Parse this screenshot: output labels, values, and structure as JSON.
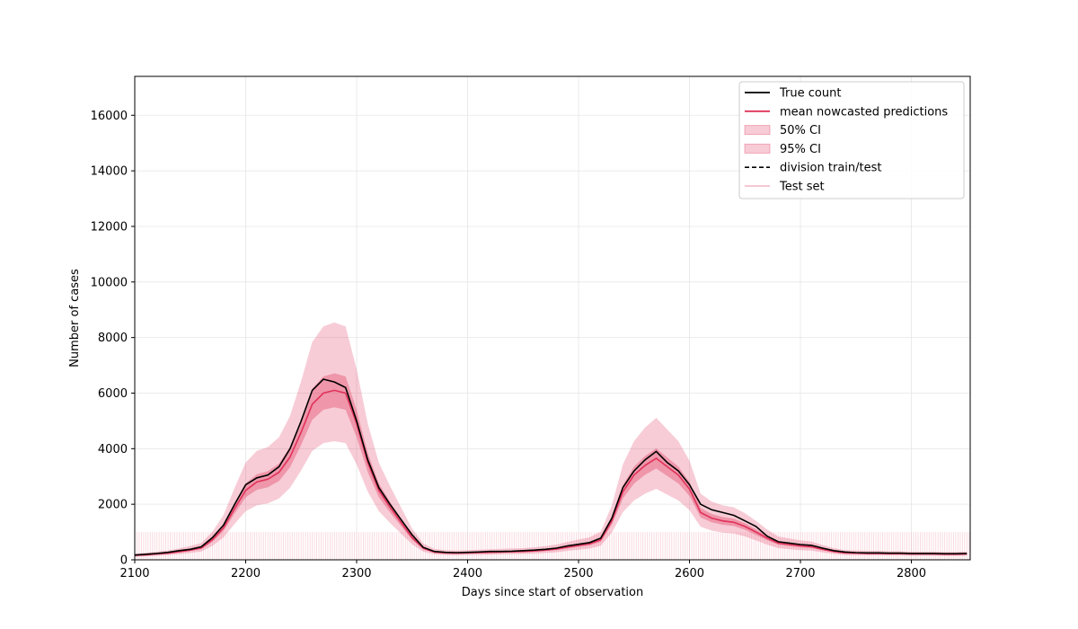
{
  "chart_data": {
    "type": "line",
    "title": "",
    "xlabel": "Days since start of observation",
    "ylabel": "Number of cases",
    "xlim": [
      2100,
      2853
    ],
    "ylim": [
      0,
      17400
    ],
    "xticks": [
      2100,
      2200,
      2300,
      2400,
      2500,
      2600,
      2700,
      2800
    ],
    "yticks": [
      0,
      2000,
      4000,
      6000,
      8000,
      10000,
      12000,
      14000,
      16000
    ],
    "grid": true,
    "legend_position": "top-right",
    "test_set": {
      "name": "Test set",
      "x_start": 2100,
      "x_end": 2853,
      "band_top": 1000,
      "color": "#f4b6c2"
    },
    "colors": {
      "true_count": "#000000",
      "mean": "#e0325a",
      "ci50": "#e0325a",
      "ci95": "#e0325a"
    },
    "legend": [
      {
        "key": "true",
        "label": "True count"
      },
      {
        "key": "mean",
        "label": "mean nowcasted predictions"
      },
      {
        "key": "ci50",
        "label": "50% CI"
      },
      {
        "key": "ci95",
        "label": "95% CI"
      },
      {
        "key": "division",
        "label": "division train/test"
      },
      {
        "key": "test",
        "label": "Test set"
      }
    ],
    "x": [
      2100,
      2110,
      2120,
      2130,
      2140,
      2150,
      2160,
      2170,
      2180,
      2190,
      2200,
      2210,
      2220,
      2230,
      2240,
      2250,
      2260,
      2270,
      2280,
      2290,
      2300,
      2310,
      2320,
      2330,
      2340,
      2350,
      2360,
      2370,
      2380,
      2390,
      2400,
      2410,
      2420,
      2430,
      2440,
      2450,
      2460,
      2470,
      2480,
      2490,
      2500,
      2510,
      2520,
      2530,
      2540,
      2550,
      2560,
      2570,
      2580,
      2590,
      2600,
      2610,
      2620,
      2630,
      2640,
      2650,
      2660,
      2670,
      2680,
      2690,
      2700,
      2710,
      2720,
      2730,
      2740,
      2750,
      2760,
      2770,
      2780,
      2790,
      2800,
      2810,
      2820,
      2830,
      2840,
      2850
    ],
    "series": [
      {
        "name": "True count",
        "values": [
          170,
          200,
          230,
          270,
          330,
          380,
          470,
          800,
          1250,
          2000,
          2700,
          2950,
          3050,
          3350,
          4000,
          5000,
          6100,
          6500,
          6400,
          6200,
          5000,
          3600,
          2600,
          2000,
          1450,
          900,
          450,
          300,
          270,
          260,
          270,
          280,
          300,
          300,
          310,
          330,
          350,
          380,
          420,
          500,
          560,
          620,
          780,
          1500,
          2600,
          3200,
          3600,
          3900,
          3500,
          3200,
          2700,
          2000,
          1800,
          1700,
          1600,
          1400,
          1200,
          850,
          650,
          600,
          550,
          520,
          420,
          330,
          280,
          260,
          250,
          250,
          240,
          240,
          230,
          230,
          230,
          220,
          220,
          230
        ]
      },
      {
        "name": "mean nowcasted predictions",
        "values": [
          160,
          180,
          210,
          240,
          290,
          350,
          430,
          720,
          1150,
          1850,
          2500,
          2800,
          2900,
          3150,
          3700,
          4600,
          5600,
          6000,
          6100,
          6000,
          4900,
          3500,
          2500,
          1900,
          1350,
          800,
          420,
          280,
          250,
          240,
          250,
          260,
          270,
          280,
          290,
          300,
          320,
          350,
          390,
          460,
          520,
          580,
          720,
          1400,
          2450,
          3050,
          3400,
          3650,
          3350,
          3050,
          2550,
          1700,
          1500,
          1400,
          1350,
          1200,
          1000,
          780,
          600,
          550,
          500,
          470,
          380,
          300,
          250,
          240,
          230,
          230,
          220,
          220,
          210,
          210,
          210,
          200,
          200,
          210
        ]
      },
      {
        "name": "50% CI lower",
        "values": [
          140,
          160,
          190,
          215,
          260,
          315,
          385,
          650,
          1035,
          1665,
          2250,
          2520,
          2610,
          2835,
          3330,
          4140,
          5040,
          5400,
          5490,
          5400,
          4410,
          3150,
          2250,
          1710,
          1215,
          720,
          378,
          252,
          225,
          216,
          225,
          234,
          243,
          252,
          261,
          270,
          288,
          315,
          351,
          414,
          468,
          522,
          648,
          1260,
          2205,
          2745,
          3060,
          3285,
          3015,
          2745,
          2295,
          1530,
          1350,
          1260,
          1215,
          1080,
          900,
          702,
          540,
          495,
          450,
          423,
          342,
          270,
          225,
          216,
          207,
          207,
          198,
          198,
          189,
          189,
          189,
          180,
          180,
          189
        ]
      },
      {
        "name": "50% CI upper",
        "values": [
          180,
          200,
          230,
          265,
          320,
          385,
          475,
          790,
          1265,
          2035,
          2750,
          3080,
          3190,
          3465,
          4070,
          5060,
          6160,
          6600,
          6710,
          6600,
          5390,
          3850,
          2750,
          2090,
          1485,
          880,
          462,
          308,
          275,
          264,
          275,
          286,
          297,
          308,
          319,
          330,
          352,
          385,
          429,
          506,
          572,
          638,
          792,
          1540,
          2695,
          3355,
          3740,
          4015,
          3685,
          3355,
          2805,
          1870,
          1650,
          1540,
          1485,
          1320,
          1100,
          858,
          660,
          605,
          550,
          517,
          418,
          330,
          275,
          264,
          253,
          253,
          242,
          242,
          231,
          231,
          231,
          220,
          220,
          231
        ]
      },
      {
        "name": "95% CI lower",
        "values": [
          112,
          126,
          147,
          168,
          203,
          245,
          301,
          504,
          805,
          1295,
          1750,
          1960,
          2030,
          2205,
          2590,
          3220,
          3920,
          4200,
          4270,
          4200,
          3430,
          2450,
          1750,
          1330,
          945,
          560,
          294,
          196,
          175,
          168,
          175,
          182,
          189,
          196,
          203,
          210,
          224,
          245,
          273,
          322,
          364,
          406,
          504,
          980,
          1715,
          2135,
          2380,
          2555,
          2345,
          2135,
          1785,
          1190,
          1050,
          980,
          945,
          840,
          700,
          546,
          420,
          385,
          350,
          329,
          266,
          210,
          175,
          168,
          161,
          161,
          154,
          154,
          147,
          147,
          147,
          140,
          140,
          147
        ]
      },
      {
        "name": "95% CI upper",
        "values": [
          224,
          252,
          294,
          336,
          406,
          490,
          602,
          1008,
          1610,
          2590,
          3500,
          3920,
          4060,
          4410,
          5180,
          6440,
          7840,
          8400,
          8540,
          8400,
          6860,
          4900,
          3500,
          2660,
          1890,
          1120,
          588,
          392,
          350,
          336,
          350,
          364,
          378,
          392,
          406,
          420,
          448,
          490,
          546,
          644,
          728,
          812,
          1008,
          1960,
          3430,
          4270,
          4760,
          5110,
          4690,
          4270,
          3570,
          2380,
          2100,
          1960,
          1890,
          1680,
          1400,
          1092,
          840,
          770,
          700,
          658,
          532,
          420,
          350,
          336,
          322,
          322,
          308,
          308,
          294,
          294,
          294,
          280,
          280,
          294
        ]
      }
    ]
  }
}
